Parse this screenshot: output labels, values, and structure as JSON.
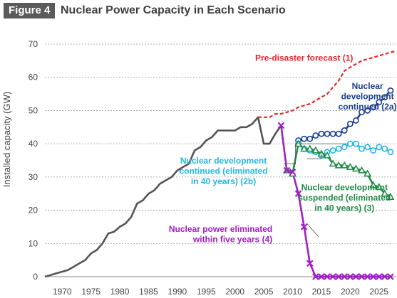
{
  "figure": {
    "badge": "Figure 4",
    "title": "Nuclear Power Capacity in Each Scenario"
  },
  "chart_data": {
    "type": "line",
    "title": "Nuclear Power Capacity in Each Scenario",
    "ylabel": "Installed capacity (GW)",
    "xlabel": "",
    "xlim": [
      1967,
      2028
    ],
    "ylim": [
      0,
      70
    ],
    "x_ticks": [
      1970,
      1975,
      1980,
      1985,
      1990,
      1995,
      2000,
      2005,
      2010,
      2015,
      2020,
      2025
    ],
    "y_ticks": [
      0,
      10,
      20,
      30,
      40,
      50,
      60,
      70
    ],
    "grid": "horizontal dashed",
    "series": [
      {
        "name": "",
        "color": "#555555",
        "style": "solid",
        "marker": "none",
        "x": [
          1967,
          1968,
          1969,
          1970,
          1971,
          1972,
          1973,
          1974,
          1975,
          1976,
          1977,
          1978,
          1979,
          1980,
          1981,
          1982,
          1983,
          1984,
          1985,
          1986,
          1987,
          1988,
          1989,
          1990,
          1991,
          1992,
          1993,
          1994,
          1995,
          1996,
          1997,
          1998,
          1999,
          2000,
          2001,
          2002,
          2003,
          2004,
          2005,
          2006,
          2007,
          2008
        ],
        "y": [
          0,
          0.5,
          1,
          1.5,
          2,
          3,
          4,
          5,
          7,
          8,
          10,
          13,
          13.5,
          15,
          16,
          18,
          22,
          23,
          25,
          26,
          28,
          29,
          30,
          32,
          33,
          34,
          38,
          39,
          41,
          42,
          44,
          44,
          44,
          44,
          45,
          45,
          46,
          48,
          40,
          40,
          43,
          45.5
        ]
      },
      {
        "name": "Pre-disaster forecast (1)",
        "color": "#e8262a",
        "style": "dashed",
        "marker": "none",
        "x": [
          2004,
          2005,
          2006,
          2007,
          2008,
          2009,
          2010,
          2011,
          2012,
          2013,
          2014,
          2015,
          2016,
          2017,
          2018,
          2019,
          2020,
          2021,
          2022,
          2023,
          2024,
          2025,
          2026,
          2027,
          2028
        ],
        "y": [
          48,
          48,
          48,
          49,
          49,
          49.5,
          50,
          51,
          51.5,
          52,
          53,
          54,
          55,
          57,
          59,
          62,
          63,
          64,
          65,
          65.5,
          66,
          66.5,
          67,
          67.5,
          68
        ]
      },
      {
        "name": "Nuclear development continued (2a)",
        "color": "#1a3d8f",
        "style": "solid",
        "marker": "circle",
        "x": [
          2011,
          2012,
          2013,
          2014,
          2015,
          2016,
          2017,
          2018,
          2019,
          2020,
          2021,
          2022,
          2023,
          2024,
          2025,
          2026,
          2027
        ],
        "y": [
          41,
          41.5,
          41.5,
          42.5,
          43,
          43,
          43,
          43,
          44,
          46,
          47,
          49.5,
          50,
          51,
          52.5,
          54,
          56
        ]
      },
      {
        "name": "Nuclear development continued (eliminated in 40 years) (2b)",
        "color": "#1fb8e6",
        "style": "solid",
        "marker": "circle",
        "x": [
          2011,
          2012,
          2013,
          2014,
          2015,
          2016,
          2017,
          2018,
          2019,
          2020,
          2021,
          2022,
          2023,
          2024,
          2025,
          2026,
          2027
        ],
        "y": [
          40,
          38.5,
          38,
          37.5,
          36.5,
          37.5,
          38,
          38.5,
          39,
          40,
          40,
          38.5,
          39,
          38,
          39,
          38.5,
          37.5
        ]
      },
      {
        "name": "Nuclear development suspended (eliminated in 40 years) (3)",
        "color": "#1e8a45",
        "style": "solid",
        "marker": "triangle",
        "x": [
          2009,
          2010,
          2011,
          2012,
          2013,
          2014,
          2015,
          2016,
          2017,
          2018,
          2019,
          2020,
          2021,
          2022,
          2023,
          2024,
          2025,
          2026,
          2027
        ],
        "y": [
          32,
          31,
          40,
          38.5,
          38.5,
          38,
          37,
          36.5,
          34,
          33.5,
          33.5,
          33,
          32.5,
          32,
          31,
          27.5,
          27,
          25,
          24
        ]
      },
      {
        "name": "Nuclear power eliminated within five years (4)",
        "color": "#a020c0",
        "style": "solid",
        "marker": "x",
        "x": [
          2008,
          2009,
          2010,
          2011,
          2012,
          2013,
          2014,
          2015,
          2016,
          2017,
          2018,
          2019,
          2020,
          2021,
          2022,
          2023,
          2024,
          2025,
          2026,
          2027
        ],
        "y": [
          45.5,
          32,
          31.5,
          25,
          15,
          4,
          0,
          0,
          0,
          0,
          0,
          0,
          0,
          0,
          0,
          0,
          0,
          0,
          0,
          0
        ]
      }
    ],
    "annotations": [
      {
        "lines": [
          "Pre-disaster forecast (1)"
        ],
        "color": "#e8262a",
        "anchor": "start",
        "at": [
          2003.5,
          65
        ]
      },
      {
        "lines": [
          "Nuclear",
          "development",
          "continued (2a)"
        ],
        "color": "#1a3d8f",
        "anchor": "middle",
        "at": [
          2023,
          56.5
        ]
      },
      {
        "lines": [
          "Nuclear development",
          "continued (eliminated",
          "in 40 years) (2b)"
        ],
        "color": "#1fb8e6",
        "anchor": "middle",
        "at": [
          1998,
          34
        ]
      },
      {
        "lines": [
          "Nuclear development",
          "suspended (eliminated",
          "in 40 years) (3)"
        ],
        "color": "#1e8a45",
        "anchor": "middle",
        "at": [
          2019,
          26
        ]
      },
      {
        "lines": [
          "Nuclear power eliminated",
          "within five years (4)"
        ],
        "color": "#a020c0",
        "anchor": "end",
        "at": [
          2006.5,
          13.5
        ]
      }
    ]
  }
}
